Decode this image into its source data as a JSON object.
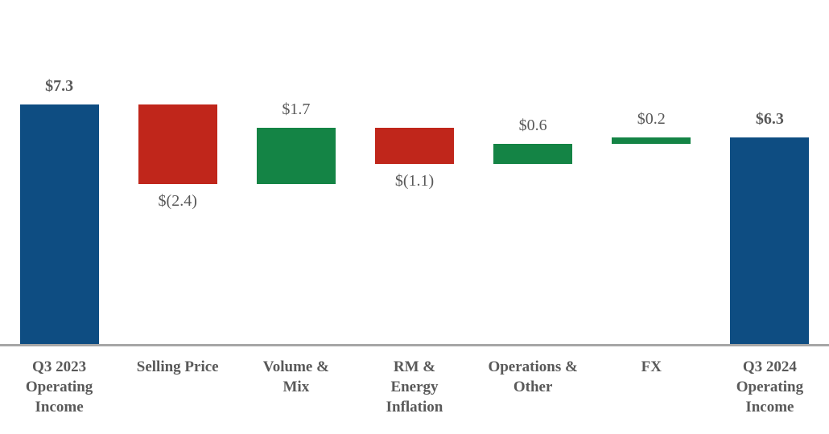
{
  "chart_data": {
    "type": "bar",
    "subtype": "waterfall",
    "title": "",
    "xlabel": "",
    "ylabel": "",
    "categories": [
      "Q3 2023 Operating Income",
      "Selling Price",
      "Volume & Mix",
      "RM & Energy Inflation",
      "Operations & Other",
      "FX",
      "Q3 2024 Operating Income"
    ],
    "category_lines": [
      [
        "Q3 2023",
        "Operating",
        "Income"
      ],
      [
        "Selling Price"
      ],
      [
        "Volume &",
        "Mix"
      ],
      [
        "RM &",
        "Energy",
        "Inflation"
      ],
      [
        "Operations &",
        "Other"
      ],
      [
        "FX"
      ],
      [
        "Q3 2024",
        "Operating",
        "Income"
      ]
    ],
    "values": [
      7.3,
      -2.4,
      1.7,
      -1.1,
      0.6,
      0.2,
      6.3
    ],
    "value_labels": [
      "$7.3",
      "$(2.4)",
      "$1.7",
      "$(1.1)",
      "$0.6",
      "$0.2",
      "$6.3"
    ],
    "bar_roles": [
      "total",
      "decrease",
      "increase",
      "decrease",
      "increase",
      "increase",
      "total"
    ],
    "label_positions": [
      "above",
      "below",
      "above",
      "below",
      "above",
      "above",
      "above"
    ],
    "label_bold": [
      true,
      false,
      false,
      false,
      false,
      false,
      true
    ],
    "running_totals": [
      7.3,
      4.9,
      6.6,
      5.5,
      6.1,
      6.3,
      6.3
    ],
    "ylim": [
      0,
      7.3
    ],
    "grid": false,
    "legend": false,
    "colors": {
      "total": "#0E4D82",
      "increase": "#148445",
      "decrease": "#C0261B",
      "axis": "#A6A6A6",
      "label_text": "#595959"
    }
  }
}
